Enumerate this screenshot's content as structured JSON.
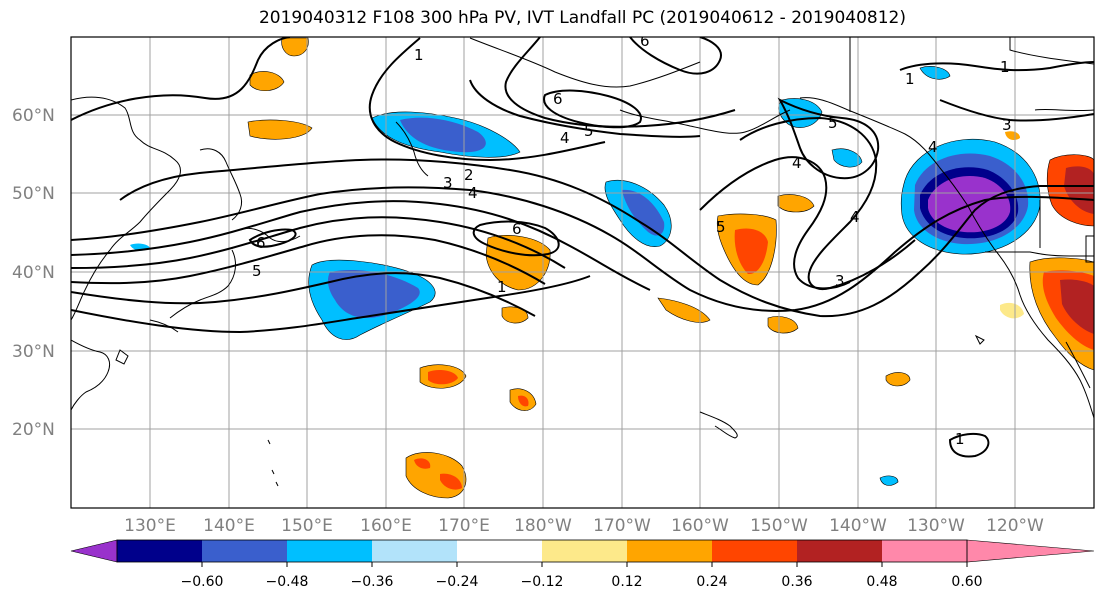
{
  "title": "2019040312 F108 300 hPa PV, IVT Landfall PC (2019040612 - 2019040812)",
  "map": {
    "lat_labels": [
      "60°N",
      "50°N",
      "40°N",
      "30°N",
      "20°N"
    ],
    "lon_labels": [
      "130°E",
      "140°E",
      "150°E",
      "160°E",
      "170°E",
      "180°W",
      "170°W",
      "160°W",
      "150°W",
      "140°W",
      "130°W",
      "120°W"
    ],
    "contour_labels": [
      "1",
      "6",
      "6",
      "5",
      "4",
      "1",
      "2",
      "3",
      "4",
      "5",
      "6",
      "1",
      "5",
      "4",
      "4",
      "5",
      "6",
      "4",
      "3",
      "3",
      "1",
      "1"
    ]
  },
  "colorbar": {
    "colors": [
      "#9932cc",
      "#00008b",
      "#3a5fcd",
      "#00bfff",
      "#b2e3fa",
      "#ffffff",
      "#fde98a",
      "#ffa500",
      "#ff4500",
      "#b22222",
      "#ff88aa"
    ],
    "tick_labels": [
      "−0.60",
      "−0.48",
      "−0.36",
      "−0.24",
      "−0.12",
      "0.12",
      "0.24",
      "0.36",
      "0.48",
      "0.60"
    ]
  }
}
